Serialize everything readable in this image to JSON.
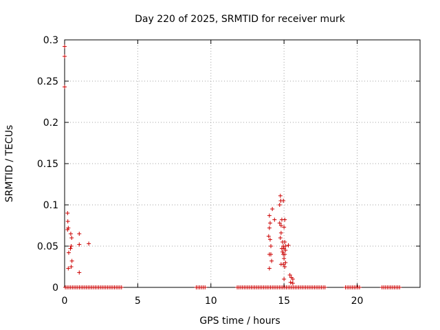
{
  "chart_data": {
    "type": "scatter",
    "title": "Day 220 of 2025, SRMTID for receiver murk",
    "xlabel": "GPS time / hours",
    "ylabel": "SRMTID / TECUs",
    "xlim": [
      0,
      24.3
    ],
    "ylim": [
      0,
      0.3
    ],
    "xticks": [
      0,
      5,
      10,
      15,
      20
    ],
    "xtick_labels": [
      "0",
      "5",
      "10",
      "15",
      "20"
    ],
    "yticks": [
      0,
      0.05,
      0.1,
      0.15,
      0.2,
      0.25,
      0.3
    ],
    "ytick_labels": [
      "0",
      "0.05",
      "0.1",
      "0.15",
      "0.2",
      "0.25",
      "0.3"
    ],
    "grid": true,
    "marker": "+",
    "color": "#cc0000",
    "zero_segments": [
      [
        0.05,
        4.0
      ],
      [
        9.0,
        9.6
      ],
      [
        11.8,
        17.8
      ],
      [
        19.2,
        20.2
      ],
      [
        21.7,
        22.9
      ]
    ],
    "zero_step": 0.12,
    "series": [
      {
        "name": "SRMTID",
        "points": [
          [
            0.0,
            0.292
          ],
          [
            0.0,
            0.28
          ],
          [
            0.0,
            0.243
          ],
          [
            0.2,
            0.09
          ],
          [
            0.22,
            0.08
          ],
          [
            0.25,
            0.072
          ],
          [
            0.2,
            0.07
          ],
          [
            0.42,
            0.065
          ],
          [
            0.48,
            0.06
          ],
          [
            0.45,
            0.05
          ],
          [
            0.4,
            0.047
          ],
          [
            0.28,
            0.042
          ],
          [
            0.5,
            0.032
          ],
          [
            0.45,
            0.025
          ],
          [
            0.25,
            0.023
          ],
          [
            1.0,
            0.065
          ],
          [
            1.0,
            0.052
          ],
          [
            1.65,
            0.053
          ],
          [
            1.0,
            0.018
          ],
          [
            14.0,
            0.087
          ],
          [
            14.05,
            0.078
          ],
          [
            14.0,
            0.072
          ],
          [
            13.95,
            0.062
          ],
          [
            14.05,
            0.058
          ],
          [
            14.1,
            0.05
          ],
          [
            14.0,
            0.04
          ],
          [
            14.1,
            0.04
          ],
          [
            14.15,
            0.032
          ],
          [
            14.0,
            0.023
          ],
          [
            14.2,
            0.095
          ],
          [
            14.35,
            0.082
          ],
          [
            14.75,
            0.111
          ],
          [
            14.78,
            0.105
          ],
          [
            14.7,
            0.1
          ],
          [
            14.95,
            0.105
          ],
          [
            14.7,
            0.078
          ],
          [
            14.8,
            0.075
          ],
          [
            14.85,
            0.082
          ],
          [
            15.05,
            0.082
          ],
          [
            15.0,
            0.073
          ],
          [
            14.8,
            0.066
          ],
          [
            14.75,
            0.06
          ],
          [
            14.9,
            0.055
          ],
          [
            15.05,
            0.055
          ],
          [
            14.95,
            0.05
          ],
          [
            15.1,
            0.05
          ],
          [
            15.3,
            0.051
          ],
          [
            14.85,
            0.047
          ],
          [
            15.0,
            0.047
          ],
          [
            14.9,
            0.043
          ],
          [
            15.1,
            0.045
          ],
          [
            14.95,
            0.04
          ],
          [
            15.05,
            0.04
          ],
          [
            15.0,
            0.035
          ],
          [
            15.1,
            0.03
          ],
          [
            14.95,
            0.028
          ],
          [
            14.8,
            0.028
          ],
          [
            15.05,
            0.025
          ],
          [
            15.0,
            0.01
          ],
          [
            15.4,
            0.015
          ],
          [
            15.5,
            0.012
          ],
          [
            15.6,
            0.01
          ],
          [
            15.45,
            0.006
          ],
          [
            15.6,
            0.005
          ]
        ]
      }
    ]
  }
}
